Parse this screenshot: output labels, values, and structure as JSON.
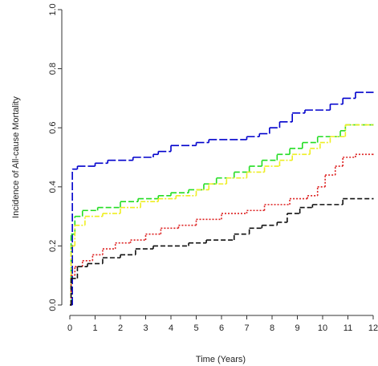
{
  "chart_data": {
    "type": "step",
    "xlabel": "Time (Years)",
    "ylabel": "Incidence of All-cause Mortality",
    "xlim": [
      0,
      12
    ],
    "ylim": [
      0,
      1
    ],
    "xticks": [
      0,
      1,
      2,
      3,
      4,
      5,
      6,
      7,
      8,
      9,
      10,
      11,
      12
    ],
    "yticks": [
      {
        "value": 0,
        "label": "0.0"
      },
      {
        "value": 0.2,
        "label": "0.2"
      },
      {
        "value": 0.4,
        "label": "0.4"
      },
      {
        "value": 0.6,
        "label": "0.6"
      },
      {
        "value": 0.8,
        "label": "0.8"
      },
      {
        "value": 1,
        "label": "1.0"
      }
    ],
    "series": [
      {
        "color": "#0000cc",
        "dash": "10 3",
        "x": [
          0,
          0.1,
          0.3,
          1,
          1.5,
          2.5,
          3.3,
          3.5,
          4,
          5,
          5.5,
          7,
          7.5,
          7.9,
          8.3,
          8.8,
          9.3,
          10.3,
          10.8,
          11.3,
          12
        ],
        "values": [
          0,
          0.46,
          0.47,
          0.48,
          0.49,
          0.5,
          0.51,
          0.52,
          0.54,
          0.55,
          0.56,
          0.57,
          0.58,
          0.6,
          0.62,
          0.65,
          0.66,
          0.68,
          0.7,
          0.72,
          0.72
        ]
      },
      {
        "color": "#22dd22",
        "dash": "7 3",
        "x": [
          0,
          0.05,
          0.2,
          0.5,
          1.1,
          2,
          2.7,
          3.5,
          4,
          4.7,
          5.3,
          5.8,
          6.5,
          7.1,
          7.6,
          8.2,
          8.7,
          9.2,
          9.8,
          10.7,
          10.9,
          12
        ],
        "values": [
          0,
          0.24,
          0.3,
          0.32,
          0.33,
          0.35,
          0.36,
          0.37,
          0.38,
          0.39,
          0.41,
          0.43,
          0.45,
          0.47,
          0.49,
          0.51,
          0.53,
          0.55,
          0.57,
          0.59,
          0.61,
          0.61
        ]
      },
      {
        "color": "#eeee22",
        "dash": "6 2 2 2",
        "x": [
          0,
          0.05,
          0.2,
          0.6,
          1.3,
          2,
          2.8,
          3.5,
          4.2,
          5,
          5.5,
          6.2,
          7,
          7.7,
          8.3,
          8.8,
          9.5,
          9.9,
          10.3,
          10.9,
          12
        ],
        "values": [
          0,
          0.2,
          0.27,
          0.3,
          0.31,
          0.33,
          0.35,
          0.36,
          0.37,
          0.39,
          0.41,
          0.43,
          0.45,
          0.47,
          0.49,
          0.51,
          0.53,
          0.55,
          0.57,
          0.61,
          0.61
        ]
      },
      {
        "color": "#dd2222",
        "dash": "2 2",
        "x": [
          0,
          0.05,
          0.2,
          0.5,
          0.9,
          1.3,
          1.8,
          2.4,
          3,
          3.6,
          4.3,
          5,
          6,
          7,
          7.7,
          8.7,
          9.4,
          9.8,
          10.1,
          10.5,
          10.8,
          11.3,
          12
        ],
        "values": [
          0,
          0.1,
          0.13,
          0.15,
          0.17,
          0.19,
          0.21,
          0.22,
          0.24,
          0.26,
          0.27,
          0.29,
          0.31,
          0.32,
          0.34,
          0.36,
          0.37,
          0.4,
          0.44,
          0.47,
          0.5,
          0.51,
          0.51
        ]
      },
      {
        "color": "#111111",
        "dash": "6 3",
        "x": [
          0,
          0.05,
          0.3,
          0.7,
          1.3,
          2,
          2.6,
          3.3,
          4.7,
          5.4,
          6.5,
          7.1,
          7.6,
          8.2,
          8.6,
          9.1,
          9.6,
          10.8,
          12
        ],
        "values": [
          0,
          0.09,
          0.13,
          0.14,
          0.16,
          0.17,
          0.19,
          0.2,
          0.21,
          0.22,
          0.24,
          0.26,
          0.27,
          0.28,
          0.31,
          0.33,
          0.34,
          0.36,
          0.36
        ]
      }
    ]
  }
}
